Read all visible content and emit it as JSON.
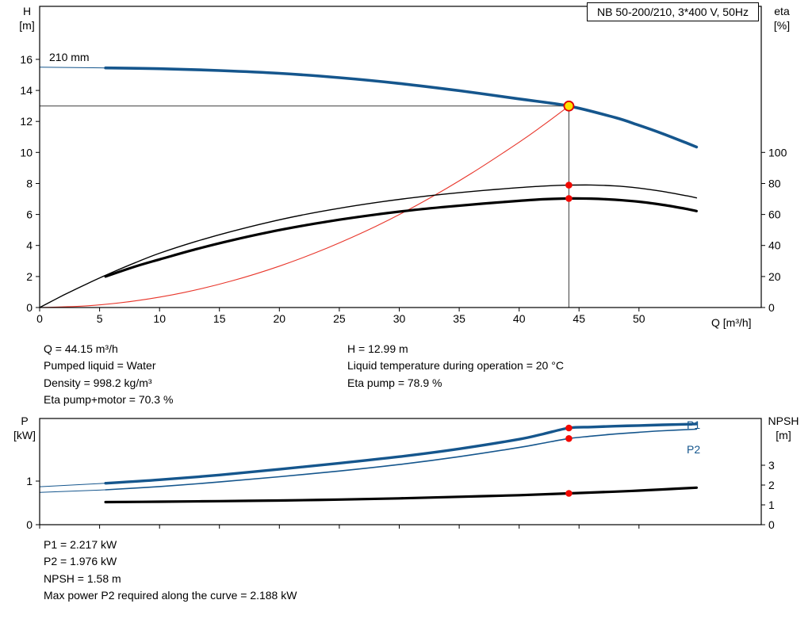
{
  "header": {
    "model_box": "NB 50-200/210, 3*400 V, 50Hz"
  },
  "labels": {
    "h_axis": {
      "sym": "H",
      "unit": "[m]"
    },
    "eta_axis": {
      "sym": "eta",
      "unit": "[%]"
    },
    "p_axis": {
      "sym": "P",
      "unit": "[kW]"
    },
    "npsh_axis": {
      "sym": "NPSH",
      "unit": "[m]"
    },
    "q_axis": "Q [m³/h]",
    "impeller": "210 mm",
    "p1": "P1",
    "p2": "P2"
  },
  "info_top": {
    "left": [
      "Q = 44.15 m³/h",
      "Pumped liquid = Water",
      "Density = 998.2 kg/m³",
      "Eta pump+motor = 70.3 %"
    ],
    "right": [
      "H = 12.99 m",
      "Liquid temperature during operation = 20 °C",
      "Eta pump = 78.9 %"
    ]
  },
  "info_bottom": [
    "P1 = 2.217 kW",
    "P2 = 1.976 kW",
    "NPSH = 1.58 m",
    "Max power P2 required along the curve = 2.188 kW"
  ],
  "colors": {
    "curve_blue": "#15568d",
    "curve_black": "#000000",
    "system_red": "#e8362b",
    "dot_red": "#f20800",
    "duty_fill": "#ffe200",
    "duty_ring": "#e00000",
    "guide_gray": "#3c3c3c"
  },
  "chart_data": [
    {
      "id": "qh",
      "type": "line",
      "title": "NB 50-200/210, 3*400 V, 50Hz",
      "x": {
        "label": "Q [m³/h]",
        "min": 0,
        "max": 60.2,
        "ticks": [
          0,
          5,
          10,
          15,
          20,
          25,
          30,
          35,
          40,
          45,
          50
        ],
        "show_labels": true
      },
      "yl": {
        "label": "H [m]",
        "min": 0,
        "max": 19.42,
        "ticks": [
          0,
          2,
          4,
          6,
          8,
          10,
          12,
          14,
          16
        ]
      },
      "yr": {
        "label": "eta [%]",
        "min": 0,
        "max": 194.2,
        "ticks": [
          0,
          20,
          40,
          60,
          80,
          100
        ]
      },
      "guides": {
        "vx": 44.15,
        "vy": 12.99
      },
      "series": [
        {
          "name": "head-curve-lead",
          "axis": "l",
          "color": "#15568d",
          "w": 1,
          "pts": [
            [
              0,
              15.5
            ],
            [
              5.5,
              15.45
            ]
          ]
        },
        {
          "name": "head-curve-210mm",
          "axis": "l",
          "color": "#15568d",
          "w": 3.6,
          "pts": [
            [
              5.5,
              15.45
            ],
            [
              10,
              15.4
            ],
            [
              15,
              15.28
            ],
            [
              20,
              15.1
            ],
            [
              25,
              14.82
            ],
            [
              30,
              14.45
            ],
            [
              35,
              13.98
            ],
            [
              40,
              13.45
            ],
            [
              44.15,
              12.99
            ],
            [
              48,
              12.25
            ],
            [
              50,
              11.75
            ],
            [
              52,
              11.2
            ],
            [
              54,
              10.6
            ],
            [
              54.8,
              10.35
            ]
          ]
        },
        {
          "name": "system-curve",
          "axis": "l",
          "color": "#e8362b",
          "w": 1.1,
          "pts": [
            [
              0,
              0
            ],
            [
              4,
              0.11
            ],
            [
              8,
              0.43
            ],
            [
              12,
              0.96
            ],
            [
              16,
              1.71
            ],
            [
              20,
              2.67
            ],
            [
              24,
              3.84
            ],
            [
              28,
              5.22
            ],
            [
              32,
              6.82
            ],
            [
              36,
              8.64
            ],
            [
              40,
              10.66
            ],
            [
              42,
              11.75
            ],
            [
              44.15,
              12.99
            ]
          ]
        },
        {
          "name": "eta-pump-curve",
          "axis": "r",
          "color": "#000000",
          "w": 1.4,
          "pts": [
            [
              0,
              0
            ],
            [
              2,
              8
            ],
            [
              4,
              15.5
            ],
            [
              6,
              22.5
            ],
            [
              8,
              29
            ],
            [
              10,
              35
            ],
            [
              13,
              42.5
            ],
            [
              16,
              49
            ],
            [
              19,
              54.8
            ],
            [
              22,
              59.8
            ],
            [
              25,
              64
            ],
            [
              28,
              67.6
            ],
            [
              31,
              70.7
            ],
            [
              34,
              73.3
            ],
            [
              37,
              75.5
            ],
            [
              40,
              77.3
            ],
            [
              42,
              78.3
            ],
            [
              44.15,
              78.9
            ],
            [
              46,
              79
            ],
            [
              48,
              78.4
            ],
            [
              50,
              77
            ],
            [
              52,
              74.8
            ],
            [
              54,
              72
            ],
            [
              54.8,
              70.7
            ]
          ]
        },
        {
          "name": "eta-pump-motor-curve",
          "axis": "r",
          "color": "#000000",
          "w": 3.2,
          "pts": [
            [
              5.5,
              20
            ],
            [
              8,
              26.5
            ],
            [
              10,
              31
            ],
            [
              13,
              37.5
            ],
            [
              16,
              43.3
            ],
            [
              19,
              48.4
            ],
            [
              22,
              52.8
            ],
            [
              25,
              56.6
            ],
            [
              28,
              59.9
            ],
            [
              31,
              62.7
            ],
            [
              34,
              65
            ],
            [
              37,
              67
            ],
            [
              40,
              68.8
            ],
            [
              42,
              69.8
            ],
            [
              44.15,
              70.3
            ],
            [
              46,
              70.2
            ],
            [
              48,
              69.5
            ],
            [
              50,
              68.2
            ],
            [
              52,
              66.2
            ],
            [
              54,
              63.5
            ],
            [
              54.8,
              62.2
            ]
          ]
        }
      ],
      "markers": [
        {
          "name": "duty-point",
          "axis": "l",
          "x": 44.15,
          "y": 12.99,
          "style": "duty"
        },
        {
          "name": "eta-pump-point",
          "axis": "r",
          "x": 44.15,
          "y": 78.9,
          "style": "dot"
        },
        {
          "name": "eta-pump-motor-point",
          "axis": "r",
          "x": 44.15,
          "y": 70.3,
          "style": "dot"
        }
      ]
    },
    {
      "id": "power",
      "type": "line",
      "x": {
        "label": "",
        "min": 0,
        "max": 60.2,
        "ticks": [
          0,
          5,
          10,
          15,
          20,
          25,
          30,
          35,
          40,
          45,
          50
        ],
        "show_labels": false
      },
      "yl": {
        "label": "P [kW]",
        "min": 0,
        "max": 2.436,
        "ticks": [
          0,
          1
        ]
      },
      "yr": {
        "label": "NPSH [m]",
        "min": 0,
        "max": 5.36,
        "ticks": [
          0,
          1,
          2,
          3
        ]
      },
      "series": [
        {
          "name": "p1-curve-lead",
          "axis": "l",
          "color": "#15568d",
          "w": 1,
          "pts": [
            [
              0,
              0.87
            ],
            [
              5.5,
              0.95
            ]
          ]
        },
        {
          "name": "p2-curve-lead",
          "axis": "l",
          "color": "#15568d",
          "w": 1,
          "pts": [
            [
              0,
              0.74
            ],
            [
              5.5,
              0.8
            ]
          ]
        },
        {
          "name": "p1-curve",
          "axis": "l",
          "color": "#15568d",
          "w": 3.4,
          "pts": [
            [
              5.5,
              0.95
            ],
            [
              10,
              1.03
            ],
            [
              15,
              1.14
            ],
            [
              20,
              1.27
            ],
            [
              25,
              1.41
            ],
            [
              30,
              1.56
            ],
            [
              35,
              1.74
            ],
            [
              40,
              1.96
            ],
            [
              42,
              2.08
            ],
            [
              44.15,
              2.217
            ],
            [
              46,
              2.24
            ],
            [
              48,
              2.26
            ],
            [
              50,
              2.275
            ],
            [
              52,
              2.29
            ],
            [
              54.8,
              2.31
            ]
          ]
        },
        {
          "name": "p2-curve",
          "axis": "l",
          "color": "#15568d",
          "w": 1.6,
          "pts": [
            [
              5.5,
              0.8
            ],
            [
              10,
              0.875
            ],
            [
              15,
              0.98
            ],
            [
              20,
              1.1
            ],
            [
              25,
              1.23
            ],
            [
              30,
              1.38
            ],
            [
              35,
              1.56
            ],
            [
              40,
              1.77
            ],
            [
              42,
              1.87
            ],
            [
              44.15,
              1.976
            ],
            [
              46,
              2.03
            ],
            [
              48,
              2.08
            ],
            [
              50,
              2.12
            ],
            [
              52,
              2.155
            ],
            [
              54.8,
              2.19
            ]
          ]
        },
        {
          "name": "npsh-curve",
          "axis": "r",
          "color": "#000000",
          "w": 3.2,
          "pts": [
            [
              5.5,
              1.14
            ],
            [
              10,
              1.16
            ],
            [
              15,
              1.19
            ],
            [
              20,
              1.22
            ],
            [
              25,
              1.27
            ],
            [
              30,
              1.33
            ],
            [
              35,
              1.41
            ],
            [
              40,
              1.49
            ],
            [
              44.15,
              1.58
            ],
            [
              48,
              1.67
            ],
            [
              50,
              1.72
            ],
            [
              52,
              1.78
            ],
            [
              54.8,
              1.87
            ]
          ]
        }
      ],
      "markers": [
        {
          "name": "p1-point",
          "axis": "l",
          "x": 44.15,
          "y": 2.217,
          "style": "dot"
        },
        {
          "name": "p2-point",
          "axis": "l",
          "x": 44.15,
          "y": 1.976,
          "style": "dot"
        },
        {
          "name": "npsh-point",
          "axis": "r",
          "x": 44.15,
          "y": 1.58,
          "style": "dot"
        }
      ]
    }
  ]
}
